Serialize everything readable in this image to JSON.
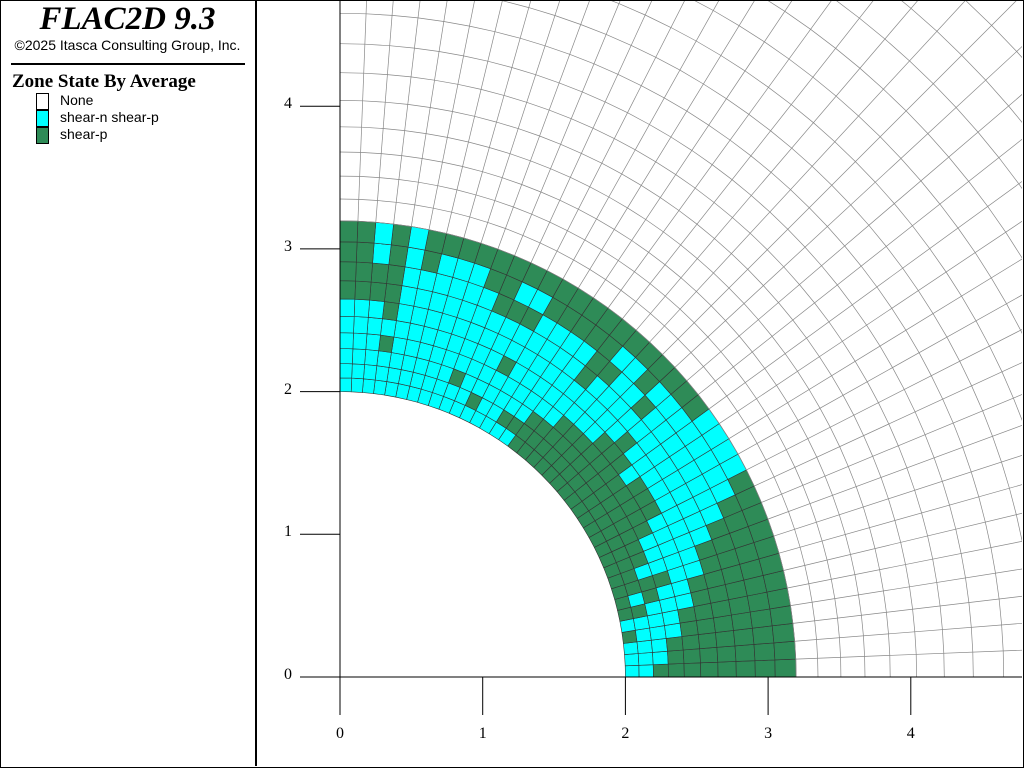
{
  "header": {
    "title": "FLAC2D 9.3",
    "copyright": "©2025 Itasca Consulting Group, Inc."
  },
  "legend": {
    "title": "Zone State By Average",
    "items": [
      {
        "label": "None",
        "color": "#ffffff"
      },
      {
        "label": "shear-n shear-p",
        "color": "#00ffff"
      },
      {
        "label": "shear-p",
        "color": "#2e8b57"
      }
    ]
  },
  "axes": {
    "x_ticks": [
      "0",
      "1",
      "2",
      "3",
      "4"
    ],
    "y_ticks": [
      "0",
      "1",
      "2",
      "3",
      "4"
    ]
  },
  "mesh": {
    "inner_radius": 2,
    "angular_divisions": 40,
    "zone_states_by_ring_inner_to_outer": [
      "nnnpnpppppppppppppppppppnnnnnnnnnnnnnnnn",
      "nnnnnpnpppppppppppppppppppnnpnnnnnnnnnnn",
      "pnnnnnppnpppppppppppppppnnnnnnpnnnnnnnnn",
      "pppnnnnpnnnpppppppppppnnnnnnnnnnnnnnpnnn",
      "pppppnnnnnnnpppnpppnnnnnnnnpnnnnnnnnnnnn",
      "pppppppnnnnnnnnnnpnnnnnnnnnnnnnnnnnnpnnn",
      "pppppppppnnnnnnnnnnnnnpnnnnnnnnnnnnnpppp",
      "ppppppppppnnnnnnnnpnnppnnnnpppnnnnnnpppp",
      "pppppppppppnnnnnnnnpnnpppppnnppnnnpnpnpp",
      "ppppppppppppnnnnpppppppppppppppppppnpnpp"
    ]
  }
}
